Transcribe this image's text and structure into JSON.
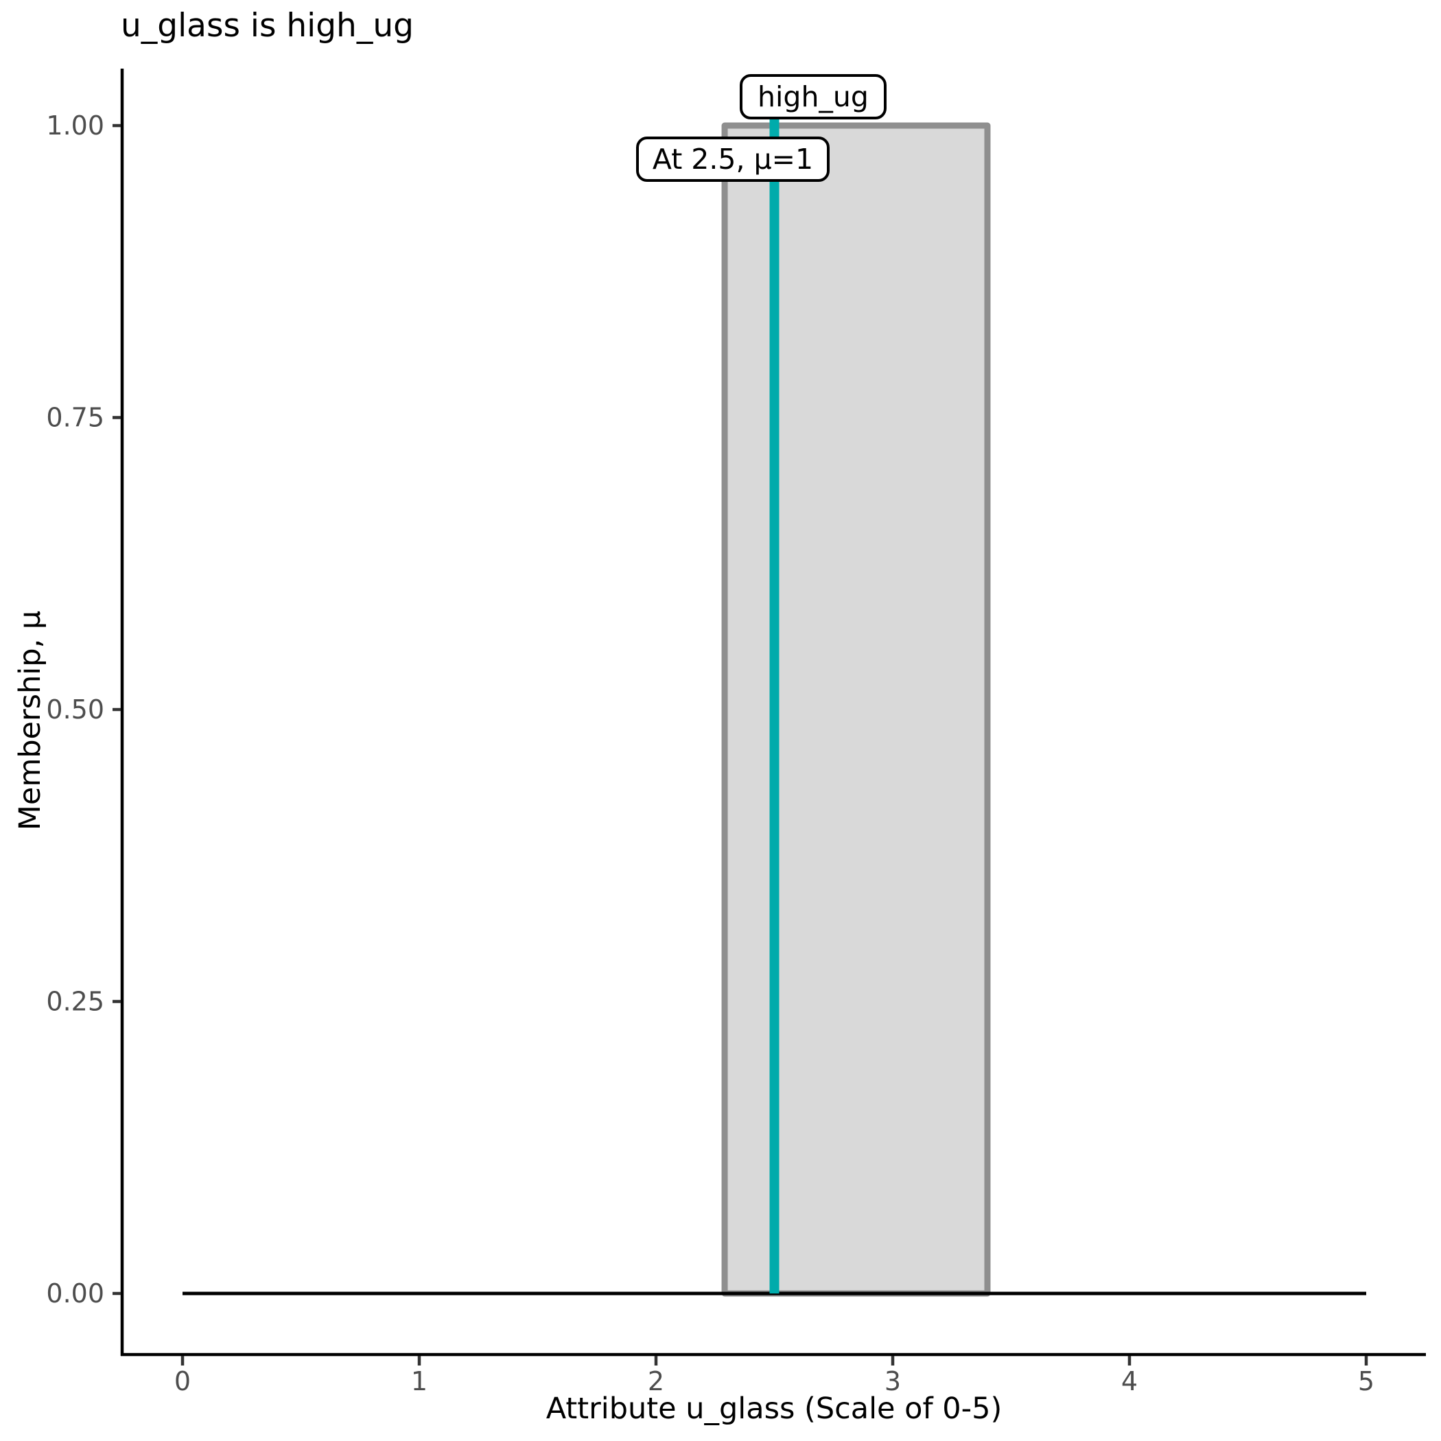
{
  "title": "u_glass is high_ug",
  "chart_data": {
    "type": "area",
    "title": "u_glass is high_ug",
    "xlabel": "Attribute u_glass (Scale of 0-5)",
    "ylabel": "Membership, μ",
    "xlim": [
      0,
      5
    ],
    "ylim": [
      0,
      1
    ],
    "x_ticks": [
      0,
      1,
      2,
      3,
      4,
      5
    ],
    "x_tick_labels": [
      "0",
      "1",
      "2",
      "3",
      "4",
      "5"
    ],
    "y_ticks": [
      0,
      0.25,
      0.5,
      0.75,
      1.0
    ],
    "y_tick_labels": [
      "0.00",
      "0.25",
      "0.50",
      "0.75",
      "1.00"
    ],
    "grid": false,
    "legend": "none",
    "membership_function": {
      "name": "high_ug",
      "shape": "rectangular",
      "points_x": [
        0,
        2.29,
        2.29,
        3.4,
        3.4,
        5
      ],
      "points_mu": [
        0,
        0,
        1,
        1,
        0,
        0
      ],
      "support": [
        2.29,
        3.4
      ],
      "core_height": 1,
      "fill_color": "#d9d9d9",
      "border_color": "#8f8f8f",
      "baseline_color": "#000000"
    },
    "evaluation": {
      "x": 2.5,
      "mu": 1,
      "line_color": "#00abab"
    },
    "annotations": [
      {
        "text": "high_ug"
      },
      {
        "text": "At 2.5, μ=1"
      }
    ]
  },
  "colors": {
    "background": "#ffffff",
    "axis": "#000000",
    "tick": "#333333",
    "tick_label": "#4d4d4d",
    "set_fill": "#d9d9d9",
    "set_border": "#8f8f8f",
    "evaluation_line": "#00abab",
    "annotation_bg": "#ffffff",
    "annotation_border": "#000000"
  }
}
